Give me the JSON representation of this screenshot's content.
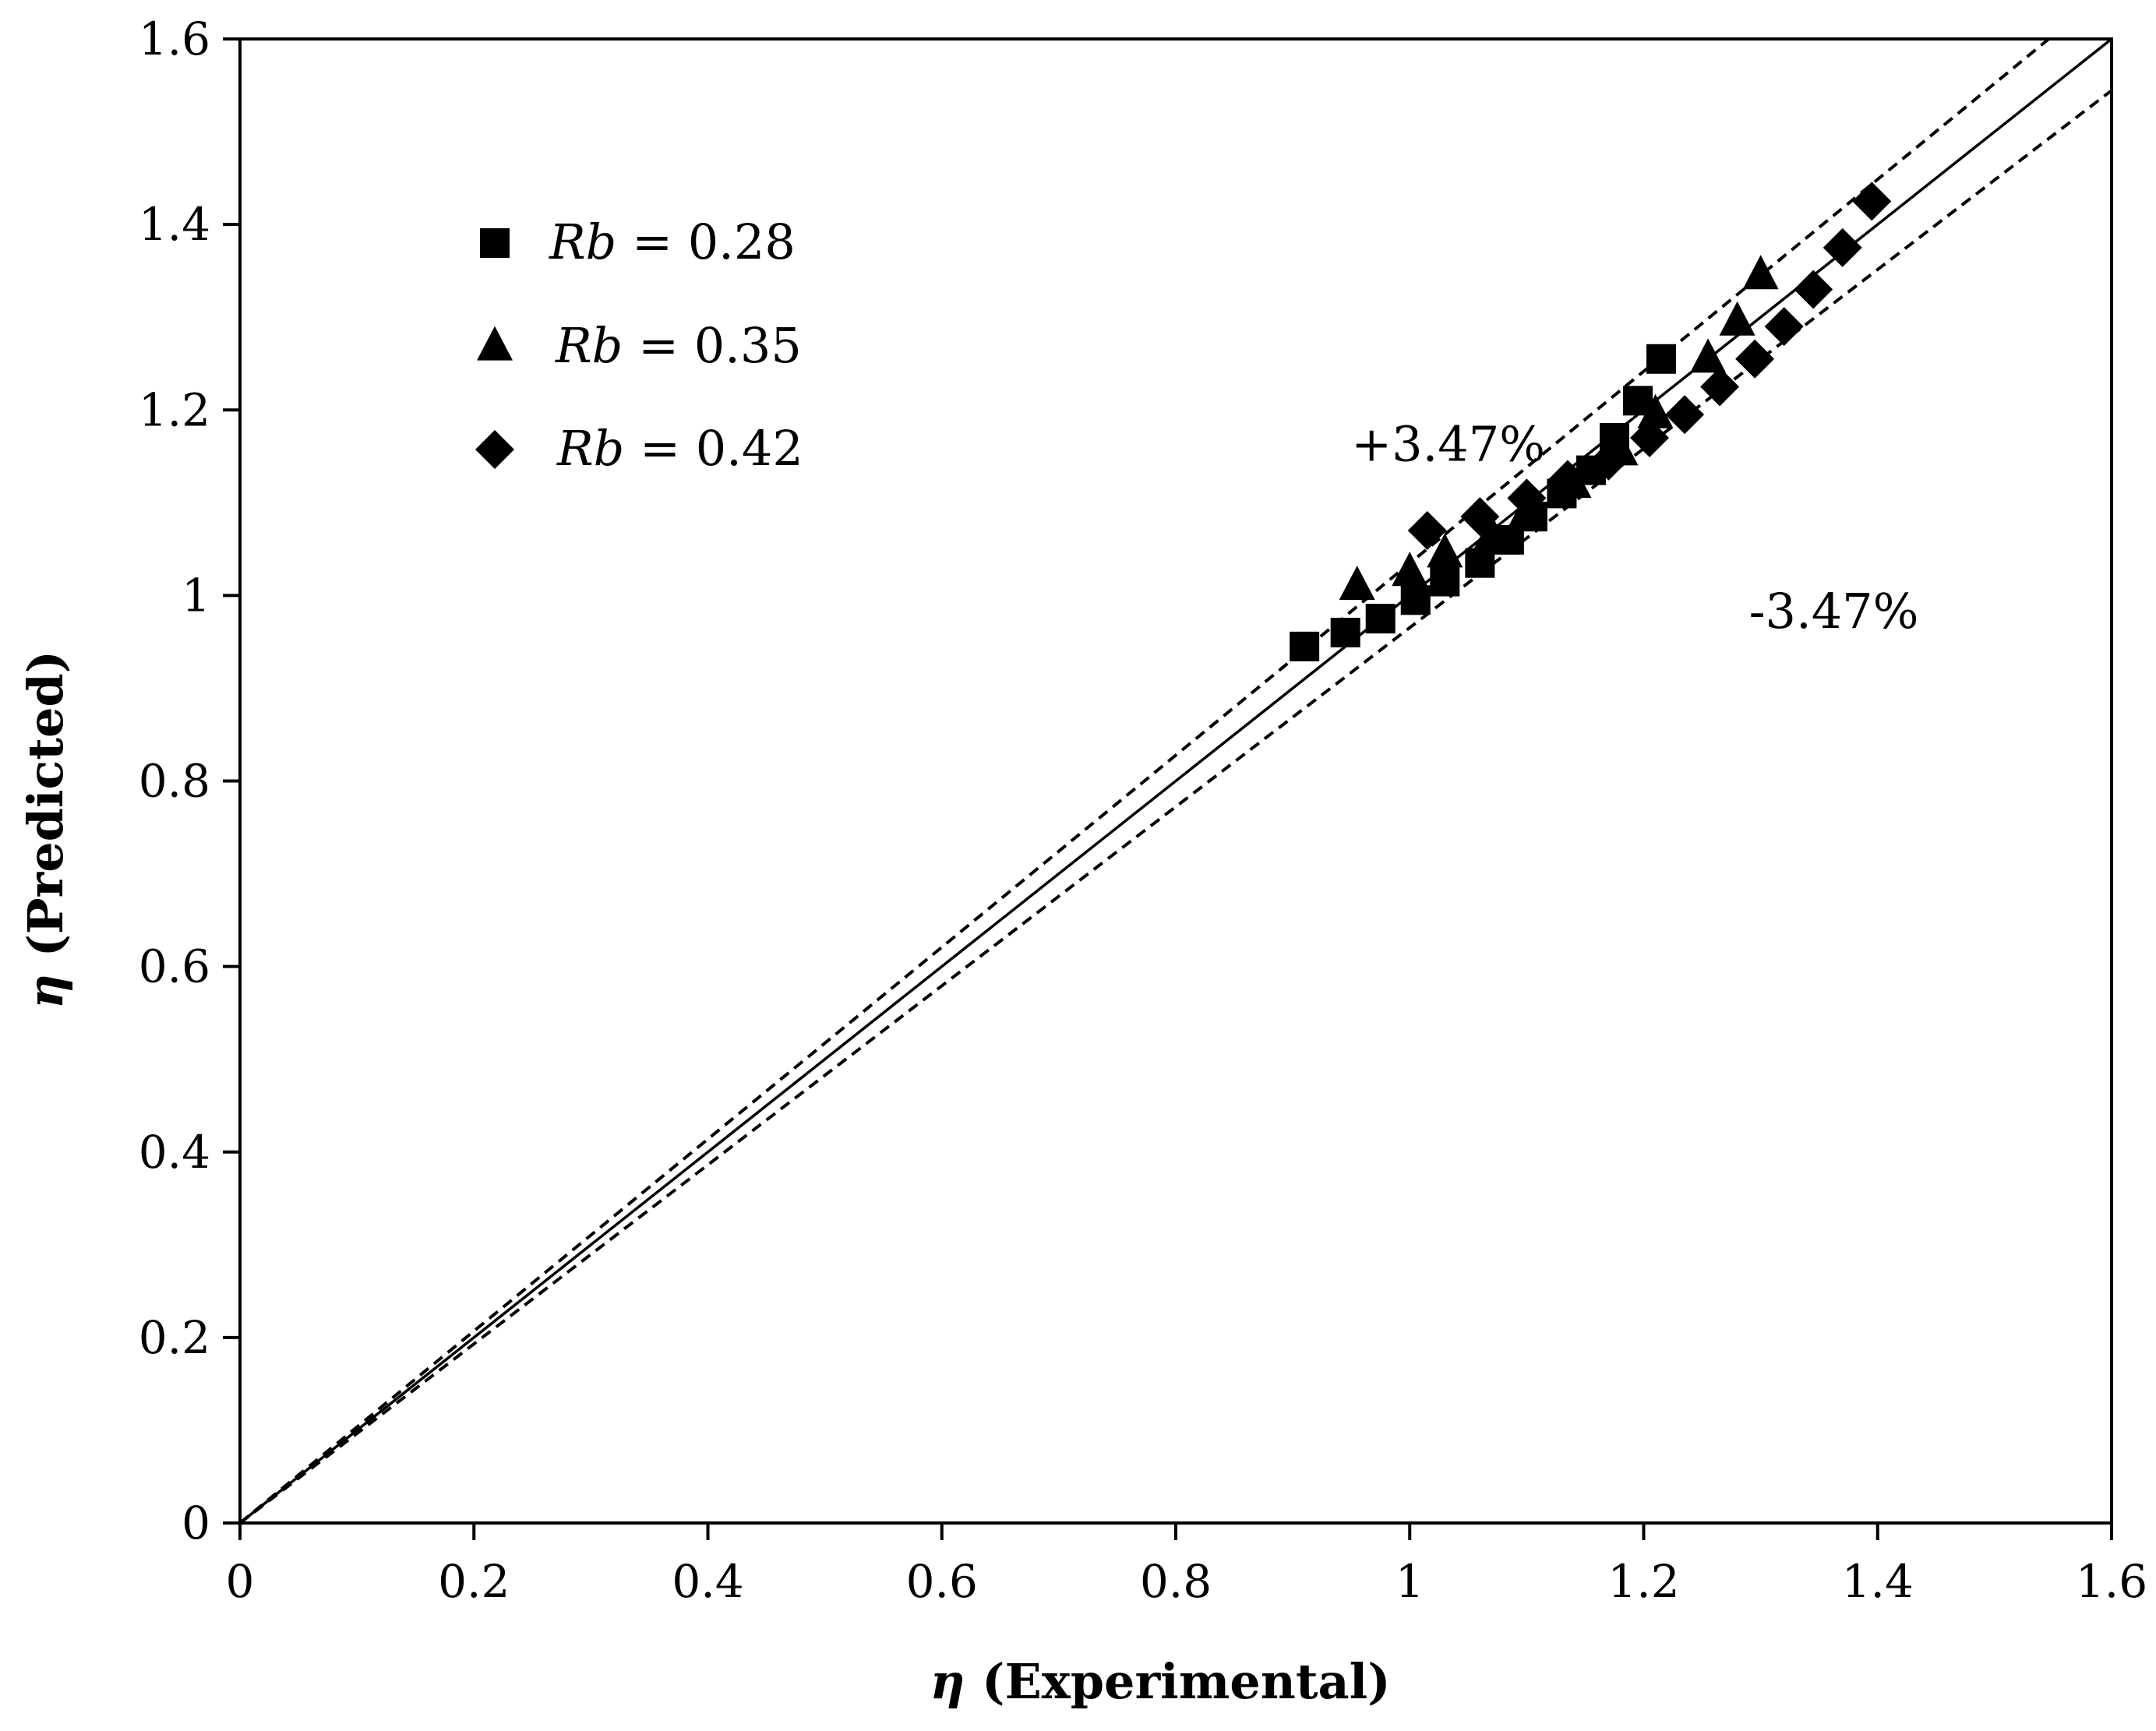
{
  "chart_data": {
    "type": "scatter",
    "title": "",
    "xlabel_symbol": "η",
    "xlabel_text": " (Experimental)",
    "ylabel_symbol": "η",
    "ylabel_text": " (Predicted)",
    "xlim": [
      0,
      1.6
    ],
    "ylim": [
      0,
      1.6
    ],
    "xticks": [
      0,
      0.2,
      0.4,
      0.6,
      0.8,
      1.0,
      1.2,
      1.4,
      1.6
    ],
    "yticks": [
      0,
      0.2,
      0.4,
      0.6,
      0.8,
      1.0,
      1.2,
      1.4,
      1.6
    ],
    "xtick_labels": [
      "0",
      "0.2",
      "0.4",
      "0.6",
      "0.8",
      "1",
      "1.2",
      "1.4",
      "1.6"
    ],
    "ytick_labels": [
      "0",
      "0.2",
      "0.4",
      "0.6",
      "0.8",
      "1",
      "1.2",
      "1.4",
      "1.6"
    ],
    "grid": false,
    "legend_position": "top-left",
    "reference_lines": [
      {
        "name": "parity",
        "slope": 1.0,
        "style": "solid"
      },
      {
        "name": "upper",
        "slope": 1.0347,
        "style": "dashed"
      },
      {
        "name": "lower",
        "slope": 0.9653,
        "style": "dashed"
      }
    ],
    "annotations": [
      {
        "text": "+3.47%",
        "x": 0.95,
        "y": 1.145
      },
      {
        "text": "-3.47%",
        "x": 1.29,
        "y": 0.965
      }
    ],
    "series": [
      {
        "name_var": "Rb",
        "name_val": " = 0.28",
        "marker": "square",
        "x": [
          0.91,
          0.945,
          0.975,
          1.005,
          1.03,
          1.06,
          1.085,
          1.105,
          1.13,
          1.155,
          1.175,
          1.195,
          1.215
        ],
        "y": [
          0.945,
          0.96,
          0.975,
          0.995,
          1.015,
          1.035,
          1.06,
          1.085,
          1.11,
          1.135,
          1.17,
          1.21,
          1.255
        ]
      },
      {
        "name_var": "Rb",
        "name_val": " = 0.35",
        "marker": "triangle",
        "x": [
          0.955,
          1.0,
          1.03,
          1.07,
          1.1,
          1.14,
          1.18,
          1.21,
          1.255,
          1.28,
          1.3
        ],
        "y": [
          1.01,
          1.025,
          1.045,
          1.065,
          1.09,
          1.12,
          1.155,
          1.195,
          1.255,
          1.295,
          1.345
        ]
      },
      {
        "name_var": "Rb",
        "name_val": " = 0.42",
        "marker": "diamond",
        "x": [
          1.015,
          1.06,
          1.1,
          1.135,
          1.17,
          1.205,
          1.235,
          1.265,
          1.295,
          1.32,
          1.345,
          1.37,
          1.395
        ],
        "y": [
          1.07,
          1.085,
          1.105,
          1.125,
          1.145,
          1.17,
          1.195,
          1.225,
          1.255,
          1.29,
          1.33,
          1.375,
          1.425
        ]
      }
    ]
  }
}
